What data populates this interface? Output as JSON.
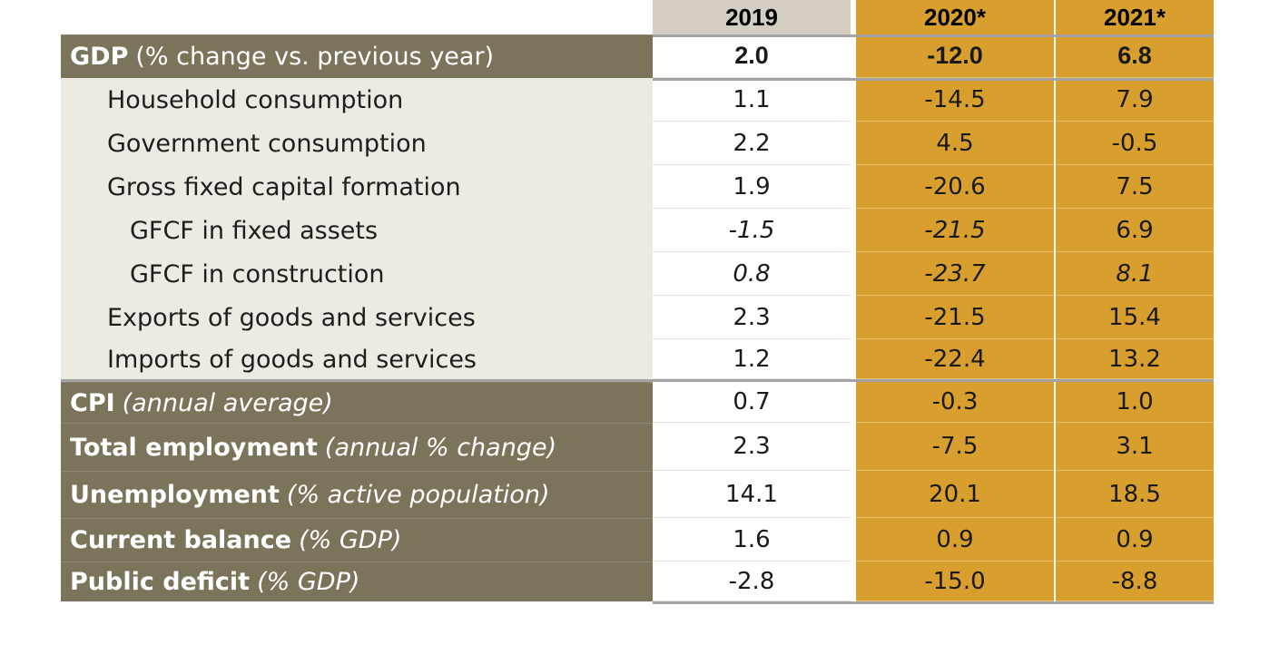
{
  "columns": [
    "2019",
    "2020*",
    "2021*"
  ],
  "rows": [
    {
      "label": "GDP",
      "qualifier": "(% change vs. previous year)",
      "style": "header-bold",
      "values": [
        "2.0",
        "-12.0",
        "6.8"
      ]
    },
    {
      "label": "Household consumption",
      "qualifier": "",
      "style": "sub",
      "values": [
        "1.1",
        "-14.5",
        "7.9"
      ]
    },
    {
      "label": "Government consumption",
      "qualifier": "",
      "style": "sub",
      "values": [
        "2.2",
        "4.5",
        "-0.5"
      ]
    },
    {
      "label": "Gross fixed capital formation",
      "qualifier": "",
      "style": "sub",
      "values": [
        "1.9",
        "-20.6",
        "7.5"
      ]
    },
    {
      "label": "GFCF in fixed assets",
      "qualifier": "",
      "style": "subsub",
      "values": [
        "-1.5",
        "-21.5",
        "6.9"
      ]
    },
    {
      "label": "GFCF in construction",
      "qualifier": "",
      "style": "subsub",
      "values": [
        "0.8",
        "-23.7",
        "8.1"
      ]
    },
    {
      "label": "Exports of goods and services",
      "qualifier": "",
      "style": "sub",
      "values": [
        "2.3",
        "-21.5",
        "15.4"
      ]
    },
    {
      "label": "Imports of goods and services",
      "qualifier": "",
      "style": "sub",
      "values": [
        "1.2",
        "-22.4",
        "13.2"
      ]
    },
    {
      "label": "CPI",
      "qualifier": "(annual average)",
      "style": "main",
      "values": [
        "0.7",
        "-0.3",
        "1.0"
      ]
    },
    {
      "label": "Total employment",
      "qualifier": "(annual % change)",
      "style": "main",
      "values": [
        "2.3",
        "-7.5",
        "3.1"
      ]
    },
    {
      "label": "Unemployment",
      "qualifier": "(% active population)",
      "style": "main",
      "values": [
        "14.1",
        "20.1",
        "18.5"
      ]
    },
    {
      "label": "Current balance",
      "qualifier": "(% GDP)",
      "style": "main",
      "values": [
        "1.6",
        "0.9",
        "0.9"
      ]
    },
    {
      "label": "Public deficit",
      "qualifier": "(% GDP)",
      "style": "main",
      "values": [
        "-2.8",
        "-15.0",
        "-8.8"
      ]
    }
  ],
  "colors": {
    "dark_label_bg": "#7c745a",
    "light_label_bg": "#edeae1",
    "header_2019_bg": "#d3cec1",
    "forecast_bg": "#d99f2e"
  }
}
